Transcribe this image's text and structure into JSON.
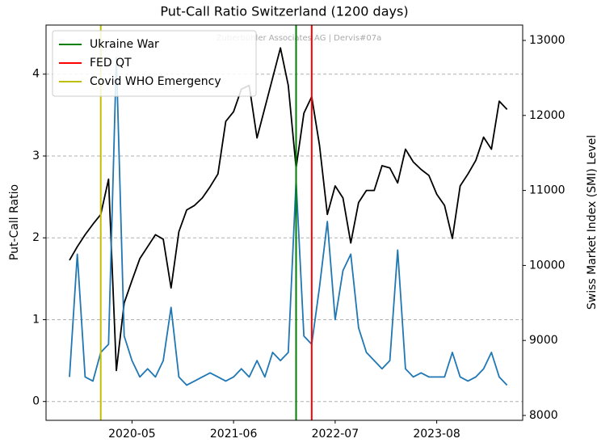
{
  "chart_data": {
    "type": "line",
    "title": "Put-Call Ratio Switzerland (1200 days)",
    "annotation": "Zuberbühler Associates AG | Dervis#07a",
    "ylabel": "Put-Call Ratio",
    "y2label": "Swiss Market Index (SMI) Level",
    "x": [
      "2019-09",
      "2019-10",
      "2019-11",
      "2019-12",
      "2020-01",
      "2020-02",
      "2020-03",
      "2020-04",
      "2020-05",
      "2020-06",
      "2020-07",
      "2020-08",
      "2020-09",
      "2020-10",
      "2020-11",
      "2020-12",
      "2021-01",
      "2021-02",
      "2021-03",
      "2021-04",
      "2021-05",
      "2021-06",
      "2021-07",
      "2021-08",
      "2021-09",
      "2021-10",
      "2021-11",
      "2021-12",
      "2022-01",
      "2022-02",
      "2022-03",
      "2022-04",
      "2022-05",
      "2022-06",
      "2022-07",
      "2022-08",
      "2022-09",
      "2022-10",
      "2022-11",
      "2022-12",
      "2023-01",
      "2023-02",
      "2023-03",
      "2023-04",
      "2023-05",
      "2023-06",
      "2023-07",
      "2023-08",
      "2023-09",
      "2023-10",
      "2023-11",
      "2023-12",
      "2024-01",
      "2024-02",
      "2024-03",
      "2024-04",
      "2024-05"
    ],
    "xlim": [
      "2019-06",
      "2024-07"
    ],
    "xticks": [
      "2020-05",
      "2021-06",
      "2022-07",
      "2023-08"
    ],
    "ylim": [
      -0.23,
      4.6
    ],
    "yticks": [
      0,
      1,
      2,
      3,
      4
    ],
    "y2lim": [
      7935,
      13205
    ],
    "y2ticks": [
      8000,
      9000,
      10000,
      11000,
      12000,
      13000
    ],
    "grid": true,
    "legend": "upper left",
    "series": [
      {
        "color": "#000000",
        "axis": "y2",
        "values": [
          10070,
          10250,
          10410,
          10550,
          10680,
          11150,
          8600,
          9500,
          9800,
          10090,
          10250,
          10410,
          10350,
          9700,
          10450,
          10740,
          10800,
          10900,
          11050,
          11220,
          11920,
          12050,
          12350,
          12400,
          11700,
          12100,
          12500,
          12900,
          12400,
          11300,
          12030,
          12250,
          11600,
          10680,
          11060,
          10900,
          10300,
          10840,
          11000,
          11000,
          11330,
          11300,
          11100,
          11550,
          11380,
          11280,
          11200,
          10950,
          10800,
          10360,
          11060,
          11220,
          11400,
          11710,
          11550,
          12190,
          12080
        ]
      },
      {
        "color": "#1f77b4",
        "axis": "y",
        "values": [
          0.3,
          1.8,
          0.3,
          0.25,
          0.6,
          0.7,
          4.2,
          0.8,
          0.5,
          0.3,
          0.4,
          0.3,
          0.5,
          1.15,
          0.3,
          0.2,
          0.25,
          0.3,
          0.35,
          0.3,
          0.25,
          0.3,
          0.4,
          0.3,
          0.5,
          0.3,
          0.6,
          0.5,
          0.6,
          2.7,
          0.8,
          0.7,
          1.4,
          2.2,
          1.0,
          1.6,
          1.8,
          0.9,
          0.6,
          0.5,
          0.4,
          0.5,
          1.85,
          0.4,
          0.3,
          0.35,
          0.3,
          0.3,
          0.3,
          0.6,
          0.3,
          0.25,
          0.3,
          0.4,
          0.6,
          0.3,
          0.2
        ]
      }
    ],
    "events": [
      {
        "name": "Ukraine War",
        "color": "#008000",
        "x": "2022-02"
      },
      {
        "name": "FED QT",
        "color": "#ff0000",
        "x": "2022-04"
      },
      {
        "name": "Covid WHO Emergency",
        "color": "#bfbf00",
        "x": "2020-01"
      }
    ]
  }
}
